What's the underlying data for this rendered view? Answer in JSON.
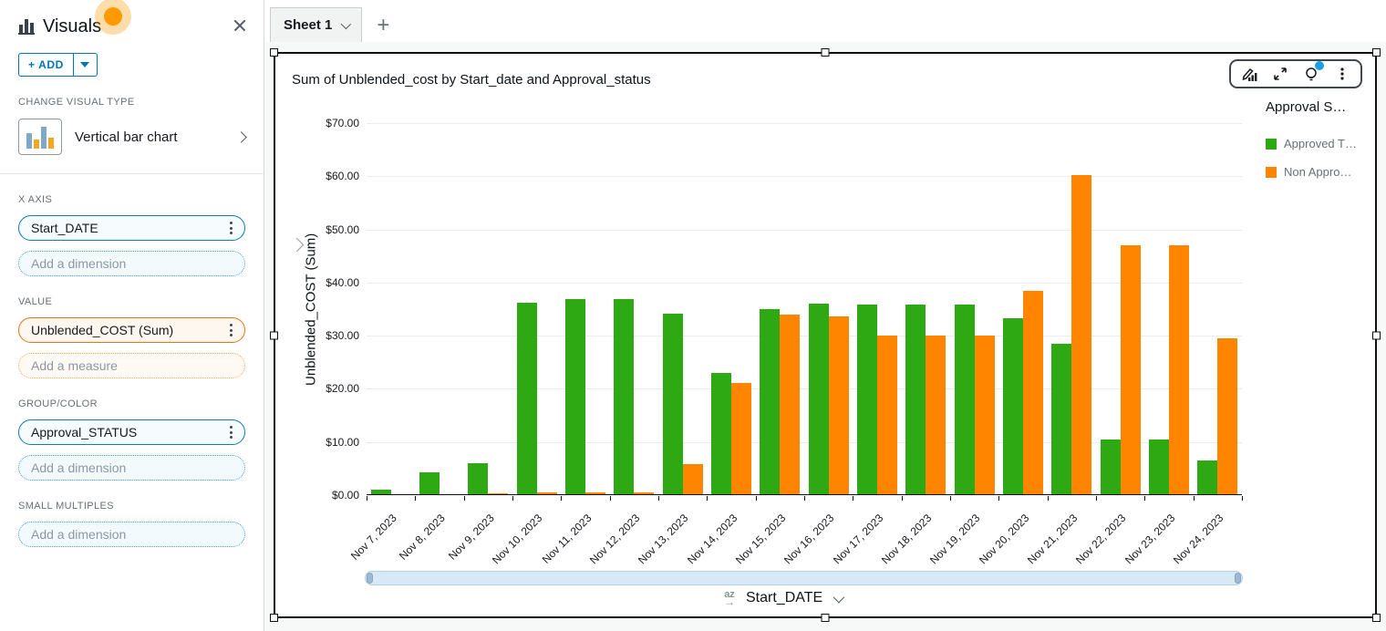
{
  "sidebar": {
    "title": "Visuals",
    "add_label": "+ ADD",
    "change_visual_type_label": "CHANGE VISUAL TYPE",
    "visual_type": "Vertical bar chart",
    "sections": {
      "x_axis": {
        "label": "X AXIS",
        "field": "Start_DATE",
        "placeholder": "Add a dimension"
      },
      "value": {
        "label": "VALUE",
        "field": "Unblended_COST (Sum)",
        "placeholder": "Add a measure"
      },
      "group_color": {
        "label": "GROUP/COLOR",
        "field": "Approval_STATUS",
        "placeholder": "Add a dimension"
      },
      "small_multiples": {
        "label": "SMALL MULTIPLES",
        "placeholder": "Add a dimension"
      }
    }
  },
  "tabbar": {
    "active_tab": "Sheet 1",
    "add_label": "+"
  },
  "visual": {
    "title": "Sum of Unblended_cost by Start_date and Approval_status",
    "legend": {
      "title": "Approval S…"
    },
    "x_axis_control": {
      "sort_icon": "az",
      "sort_arrow": "→",
      "field": "Start_DATE"
    }
  },
  "chart_data": {
    "type": "bar",
    "title": "Sum of Unblended_cost by Start_date and Approval_status",
    "xlabel": "Start_DATE",
    "ylabel": "Unblended_COST (Sum)",
    "ylim": [
      0,
      70
    ],
    "grid": true,
    "legend_position": "right",
    "y_ticks": [
      {
        "label": "$0.00",
        "value": 0
      },
      {
        "label": "$10.00",
        "value": 10
      },
      {
        "label": "$20.00",
        "value": 20
      },
      {
        "label": "$30.00",
        "value": 30
      },
      {
        "label": "$40.00",
        "value": 40
      },
      {
        "label": "$50.00",
        "value": 50
      },
      {
        "label": "$60.00",
        "value": 60
      },
      {
        "label": "$70.00",
        "value": 70
      }
    ],
    "categories": [
      "Nov 7, 2023",
      "Nov 8, 2023",
      "Nov 9, 2023",
      "Nov 10, 2023",
      "Nov 11, 2023",
      "Nov 12, 2023",
      "Nov 13, 2023",
      "Nov 14, 2023",
      "Nov 15, 2023",
      "Nov 16, 2023",
      "Nov 17, 2023",
      "Nov 18, 2023",
      "Nov 19, 2023",
      "Nov 20, 2023",
      "Nov 21, 2023",
      "Nov 22, 2023",
      "Nov 23, 2023",
      "Nov 24, 2023"
    ],
    "series": [
      {
        "name": "Approved T…",
        "color": "#2EA913",
        "values": [
          0.9,
          4.1,
          5.8,
          36.0,
          36.8,
          36.8,
          33.9,
          22.8,
          34.9,
          35.9,
          35.7,
          35.7,
          35.7,
          33.2,
          28.3,
          10.3,
          10.3,
          6.3
        ]
      },
      {
        "name": "Non Appro…",
        "color": "#FF8500",
        "values": [
          0,
          0,
          0.2,
          0.4,
          0.4,
          0.4,
          5.6,
          20.9,
          33.8,
          33.4,
          29.8,
          29.8,
          29.9,
          38.2,
          60.0,
          46.8,
          46.8,
          29.3
        ]
      }
    ]
  }
}
